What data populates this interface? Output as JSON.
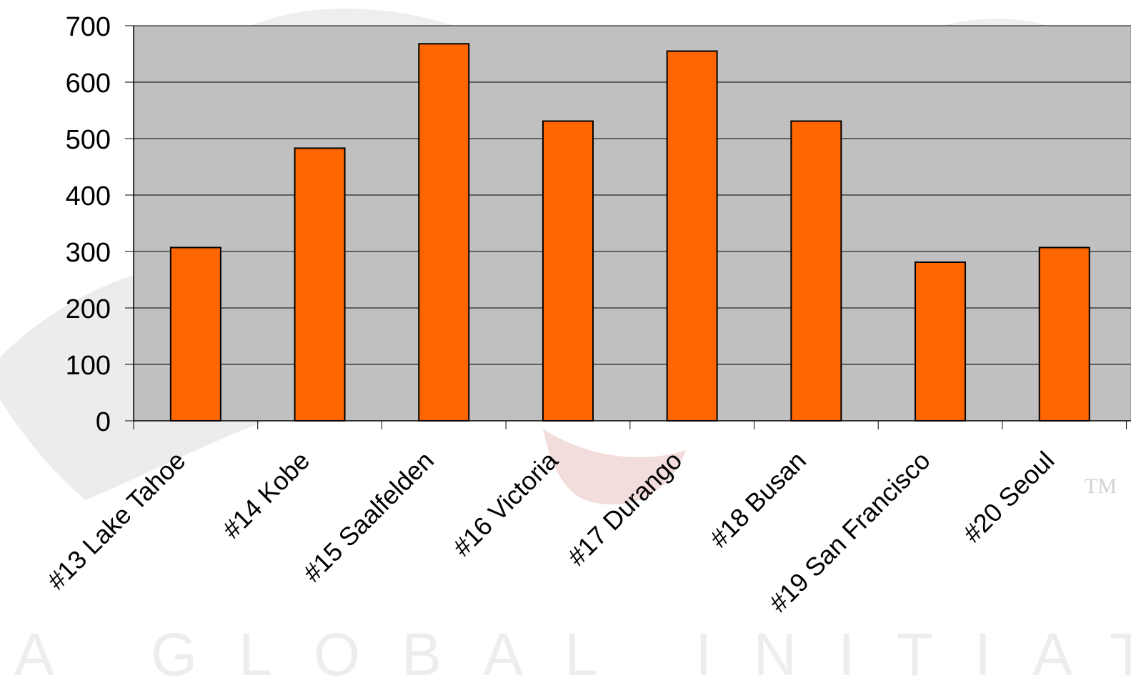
{
  "chart_data": {
    "type": "bar",
    "categories": [
      "#13 Lake Tahoe",
      "#14 Kobe",
      "#15 Saalfelden",
      "#16 Victoria",
      "#17 Durango",
      "#18 Busan",
      "#19 San Francisco",
      "#20 Seoul"
    ],
    "values": [
      307,
      483,
      668,
      531,
      655,
      531,
      281,
      307
    ],
    "ylim": [
      0,
      700
    ],
    "yticks": [
      0,
      100,
      200,
      300,
      400,
      500,
      600,
      700
    ],
    "grid": true,
    "legend": "none",
    "title": "",
    "xlabel": "",
    "ylabel": ""
  },
  "background": {
    "watermark_text": "A GLOBAL INITIATIV",
    "trademark_text": "TM"
  },
  "colors": {
    "bar": "#ff6600",
    "plot_area": "#c0c0c0",
    "watermark": "#ededed"
  }
}
